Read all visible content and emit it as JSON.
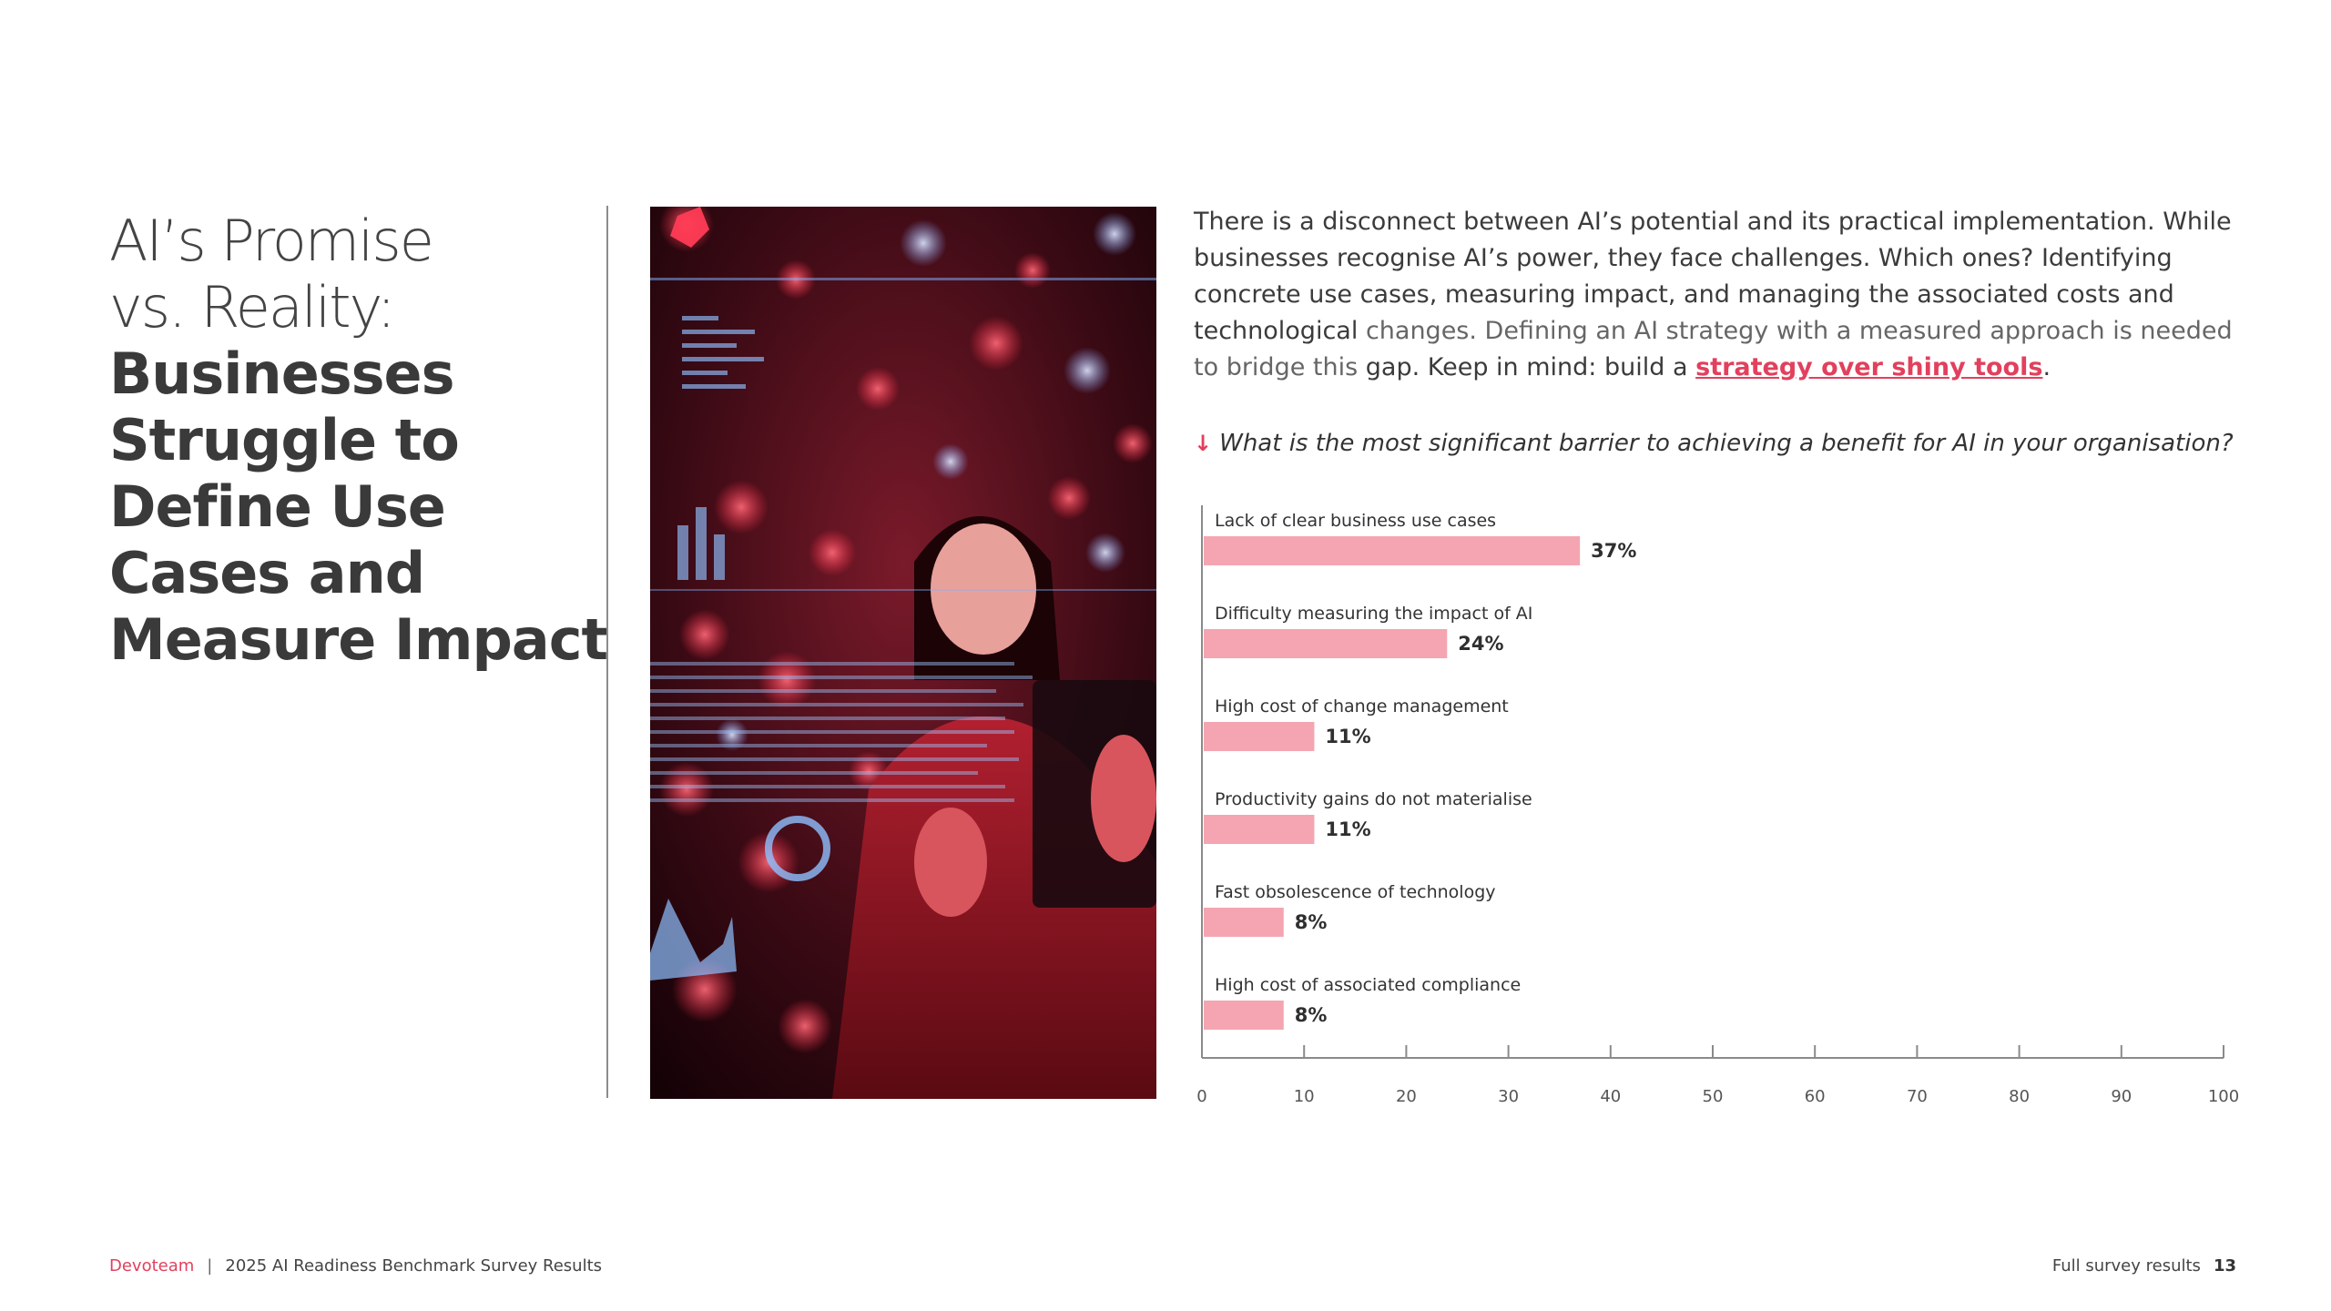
{
  "title": {
    "light_line1": "AI’s Promise",
    "light_line2": "vs. Reality:",
    "bold_line1": "Businesses",
    "bold_line2": "Struggle to",
    "bold_line3": "Define Use",
    "bold_line4": "Cases and",
    "bold_line5": "Measure Impact"
  },
  "intro": {
    "part1": "There is a disconnect between AI’s potential and its practical implementation. While businesses recognise AI’s power, they face challenges. Which ones? Identifying concrete use cases, measuring impact, and managing the associated costs and technological",
    "part2": "changes. Defining an AI strategy with a measured approach is needed to bridge this",
    "part3": "gap. Keep in mind: build a ",
    "link": "strategy over shiny tools",
    "part4": "."
  },
  "question": {
    "arrow": "↓",
    "text": "What is the most significant barrier to achieving a benefit for AI in your organisation?"
  },
  "colors": {
    "accent": "#e2405d",
    "bar": "#f4a5b1",
    "axis": "#8a8a8a"
  },
  "photo": {
    "description_icon": "woman-with-tablet-photo"
  },
  "chart_data": {
    "type": "bar",
    "orientation": "horizontal",
    "categories": [
      "Lack of clear business use cases",
      "Difficulty measuring the impact of AI",
      "High cost of change management",
      "Productivity gains do not materialise",
      "Fast obsolescence of technology",
      "High cost of associated compliance"
    ],
    "values": [
      37,
      24,
      11,
      11,
      8,
      8
    ],
    "value_labels": [
      "37%",
      "24%",
      "11%",
      "11%",
      "8%",
      "8%"
    ],
    "xlim": [
      0,
      100
    ],
    "xticks": [
      0,
      10,
      20,
      30,
      40,
      50,
      60,
      70,
      80,
      90,
      100
    ],
    "grid": false,
    "legend": "none"
  },
  "footer": {
    "brand": "Devoteam",
    "separator": "|",
    "report": "2025 AI Readiness Benchmark Survey Results",
    "section": "Full survey results",
    "page": "13"
  }
}
